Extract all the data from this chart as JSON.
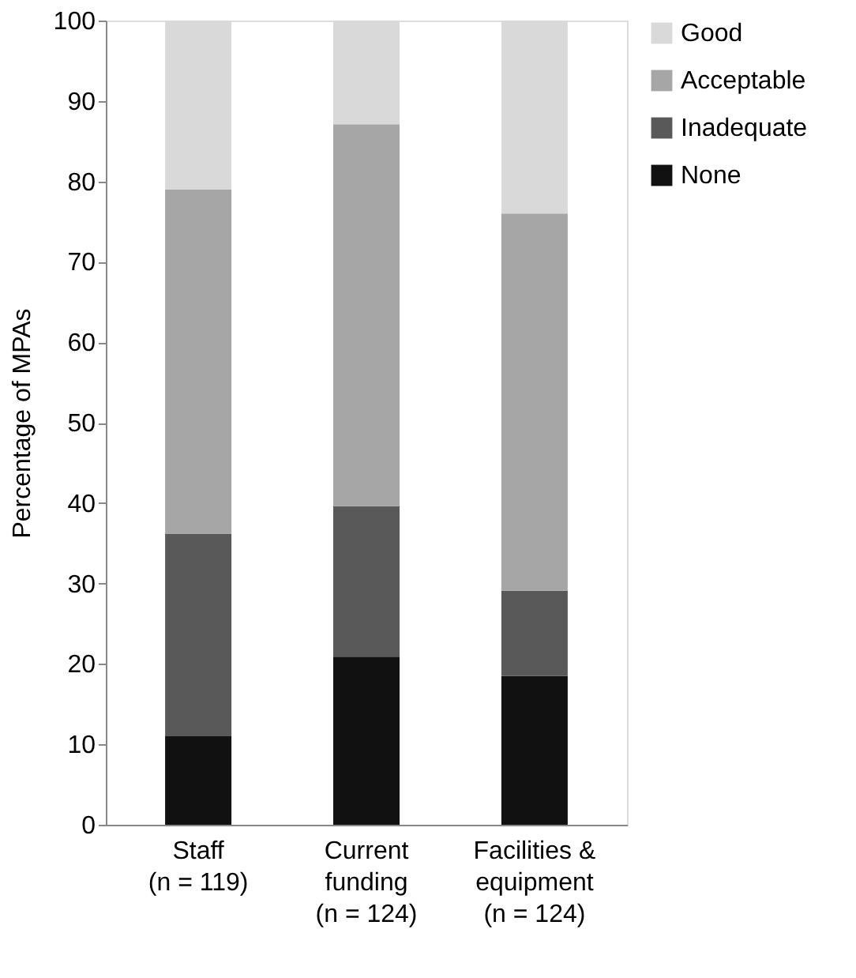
{
  "chart_data": {
    "type": "bar",
    "stacked": true,
    "ylabel": "Percentage of MPAs",
    "categories": [
      "Staff\n(n = 119)",
      "Current\nfunding\n(n = 124)",
      "Facilities &\nequipment\n(n = 124)"
    ],
    "series": [
      {
        "name": "None",
        "color": "#111111",
        "values": [
          11,
          20.9,
          18.5
        ]
      },
      {
        "name": "Inadequate",
        "color": "#595959",
        "values": [
          25.2,
          18.7,
          10.6
        ]
      },
      {
        "name": "Acceptable",
        "color": "#a6a6a6",
        "values": [
          42.8,
          47.5,
          46.9
        ]
      },
      {
        "name": "Good",
        "color": "#d9d9d9",
        "values": [
          21,
          12.9,
          24.0
        ]
      }
    ],
    "ylim": [
      0,
      100
    ],
    "yticks": [
      0,
      10,
      20,
      30,
      40,
      50,
      60,
      70,
      80,
      90,
      100
    ],
    "grid": false,
    "legend": "right"
  }
}
